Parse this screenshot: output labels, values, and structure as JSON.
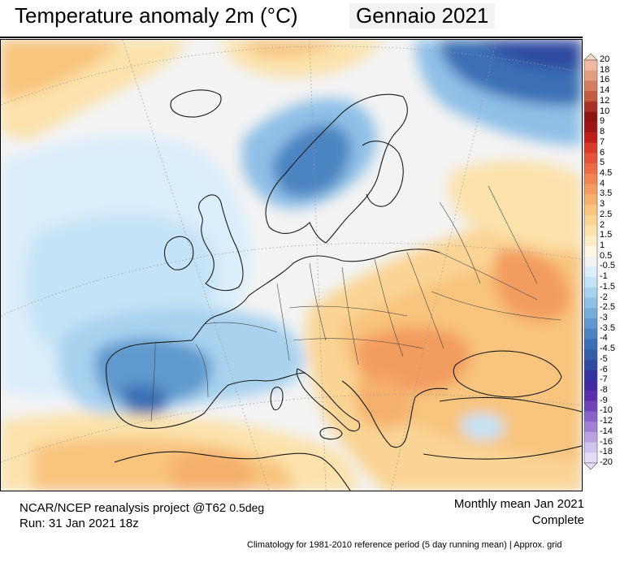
{
  "header": {
    "title": "Temperature anomaly 2m (°C)",
    "month_label": "Gennaio  2021"
  },
  "map": {
    "region": "Europe",
    "variable": "2m temperature anomaly",
    "unit": "°C"
  },
  "legend": {
    "labels": [
      "20",
      "18",
      "16",
      "14",
      "12",
      "10",
      "9",
      "8",
      "7",
      "6",
      "5",
      "4.5",
      "4",
      "3.5",
      "3",
      "2.5",
      "2",
      "1.5",
      "1",
      "0.5",
      "-0.5",
      "-1",
      "-1.5",
      "-2",
      "-2.5",
      "-3",
      "-3.5",
      "-4",
      "-4.5",
      "-5",
      "-6",
      "-7",
      "-8",
      "-9",
      "-10",
      "-12",
      "-14",
      "-16",
      "-18",
      "-20"
    ],
    "colors": [
      "#f6d8c6",
      "#eeb9a0",
      "#e39e80",
      "#d57d5f",
      "#c45c42",
      "#a83225",
      "#8e1414",
      "#a01616",
      "#bf1f1b",
      "#d83a28",
      "#e5543a",
      "#ec6c45",
      "#f08551",
      "#f39c5e",
      "#f5b06c",
      "#f8c47e",
      "#fad494",
      "#fbe2ab",
      "#fdedc5",
      "#fdf6e2",
      "#f3f3f3",
      "#dbeefb",
      "#c5e3f6",
      "#a9d2ef",
      "#8fc0e7",
      "#76add9",
      "#5f99cd",
      "#4b84c1",
      "#3b70b4",
      "#325ea8",
      "#2f4aa0",
      "#3334a0",
      "#4129a2",
      "#5a2fad",
      "#6f46b8",
      "#8764c8",
      "#a082d4",
      "#b9a3e0",
      "#d2c3ec",
      "#e6dcf6"
    ]
  },
  "footer": {
    "source": "NCAR/NCEP reanalysis project @T62",
    "resolution": "0.5deg",
    "run": "Run: 31 Jan 2021 18z",
    "period": "Monthly mean Jan 2021",
    "status": "Complete",
    "note": "Climatology for 1981-2010 reference period (5 day running mean) | Approx. grid"
  }
}
